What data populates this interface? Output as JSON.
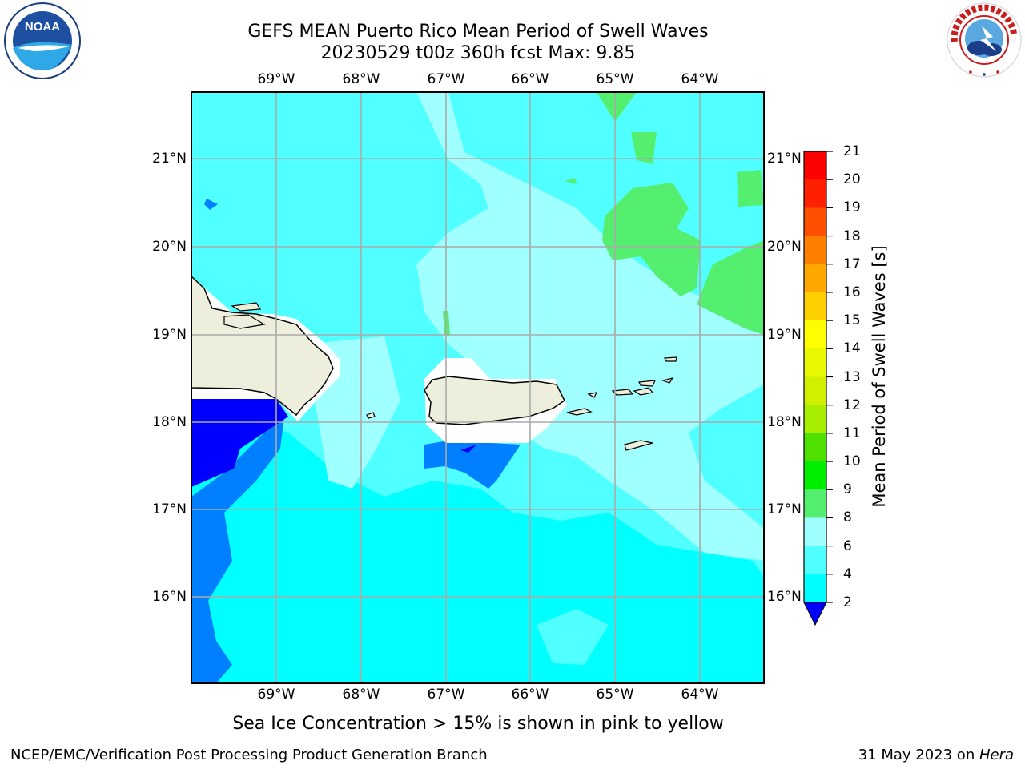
{
  "title": {
    "line1": "GEFS MEAN Puerto Rico Mean Period of Swell Waves",
    "line2": "20230529 t00z 360h fcst   Max: 9.85"
  },
  "lon_ticks": [
    "69°W",
    "68°W",
    "67°W",
    "66°W",
    "65°W",
    "64°W"
  ],
  "lat_ticks": [
    "21°N",
    "20°N",
    "19°N",
    "18°N",
    "17°N",
    "16°N"
  ],
  "colorbar": {
    "label": "Mean Period of Swell Waves [s]",
    "ticks": [
      "21",
      "20",
      "19",
      "18",
      "17",
      "16",
      "15",
      "14",
      "13",
      "12",
      "11",
      "10",
      "9",
      "8",
      "6",
      "4",
      "2"
    ],
    "colors": [
      "#ff0000",
      "#ff2000",
      "#ff5000",
      "#ff8000",
      "#ffa800",
      "#ffd000",
      "#ffff00",
      "#e8f800",
      "#d0f000",
      "#a8ee00",
      "#50e000",
      "#00ee00",
      "#55ef70",
      "#a0ffff",
      "#50ffff",
      "#00ffff",
      "#0080ff",
      "#0000ff"
    ]
  },
  "note": "Sea Ice Concentration > 15% is shown in pink to yellow",
  "footer": {
    "left": "NCEP/EMC/Verification Post Processing Product Generation Branch",
    "date": "31 May 2023 on ",
    "machine": "Hera"
  },
  "logos": {
    "left": "noaa-logo",
    "right": "nws-logo",
    "left_text": "NOAA",
    "right_text": "NATIONAL WEATHER SERVICE"
  }
}
